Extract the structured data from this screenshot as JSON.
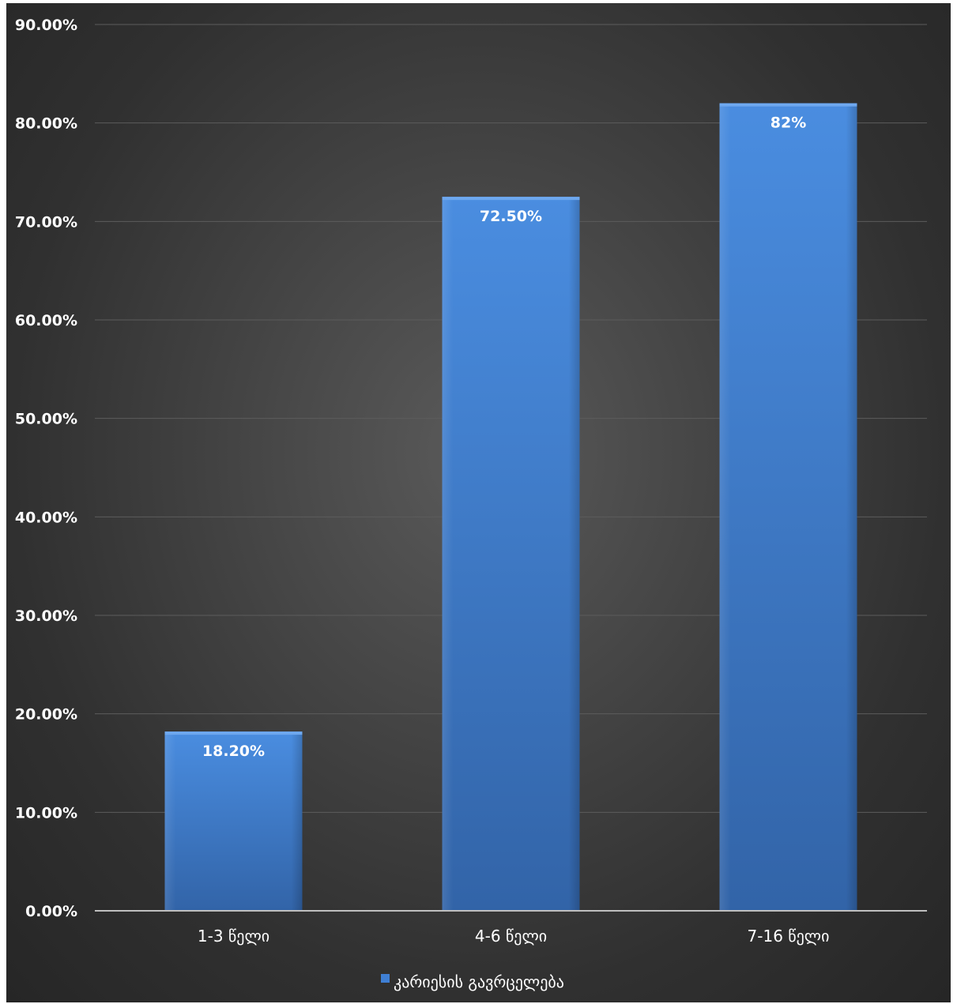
{
  "chart_data": {
    "type": "bar",
    "categories": [
      "1-3 წელი",
      "4-6 წელი",
      "7-16 წელი"
    ],
    "series": [
      {
        "name": "კარიესის გავრცელება",
        "values": [
          18.2,
          72.5,
          82
        ],
        "data_labels": [
          "18.20%",
          "72.50%",
          "82%"
        ],
        "color": "#3f7fd4"
      }
    ],
    "ylim": [
      0,
      90
    ],
    "yticks": [
      0,
      10,
      20,
      30,
      40,
      50,
      60,
      70,
      80,
      90
    ],
    "ytick_labels": [
      "0.00%",
      "10.00%",
      "20.00%",
      "30.00%",
      "40.00%",
      "50.00%",
      "60.00%",
      "70.00%",
      "80.00%",
      "90.00%"
    ],
    "grid": true,
    "legend_position": "bottom-center",
    "title": "",
    "xlabel": "",
    "ylabel": ""
  },
  "colors": {
    "background": "#3a3a3a",
    "gridline": "#5c5c5c",
    "axis": "#bfbfbf",
    "text": "#ffffff",
    "bar": "#3f7fd4"
  }
}
